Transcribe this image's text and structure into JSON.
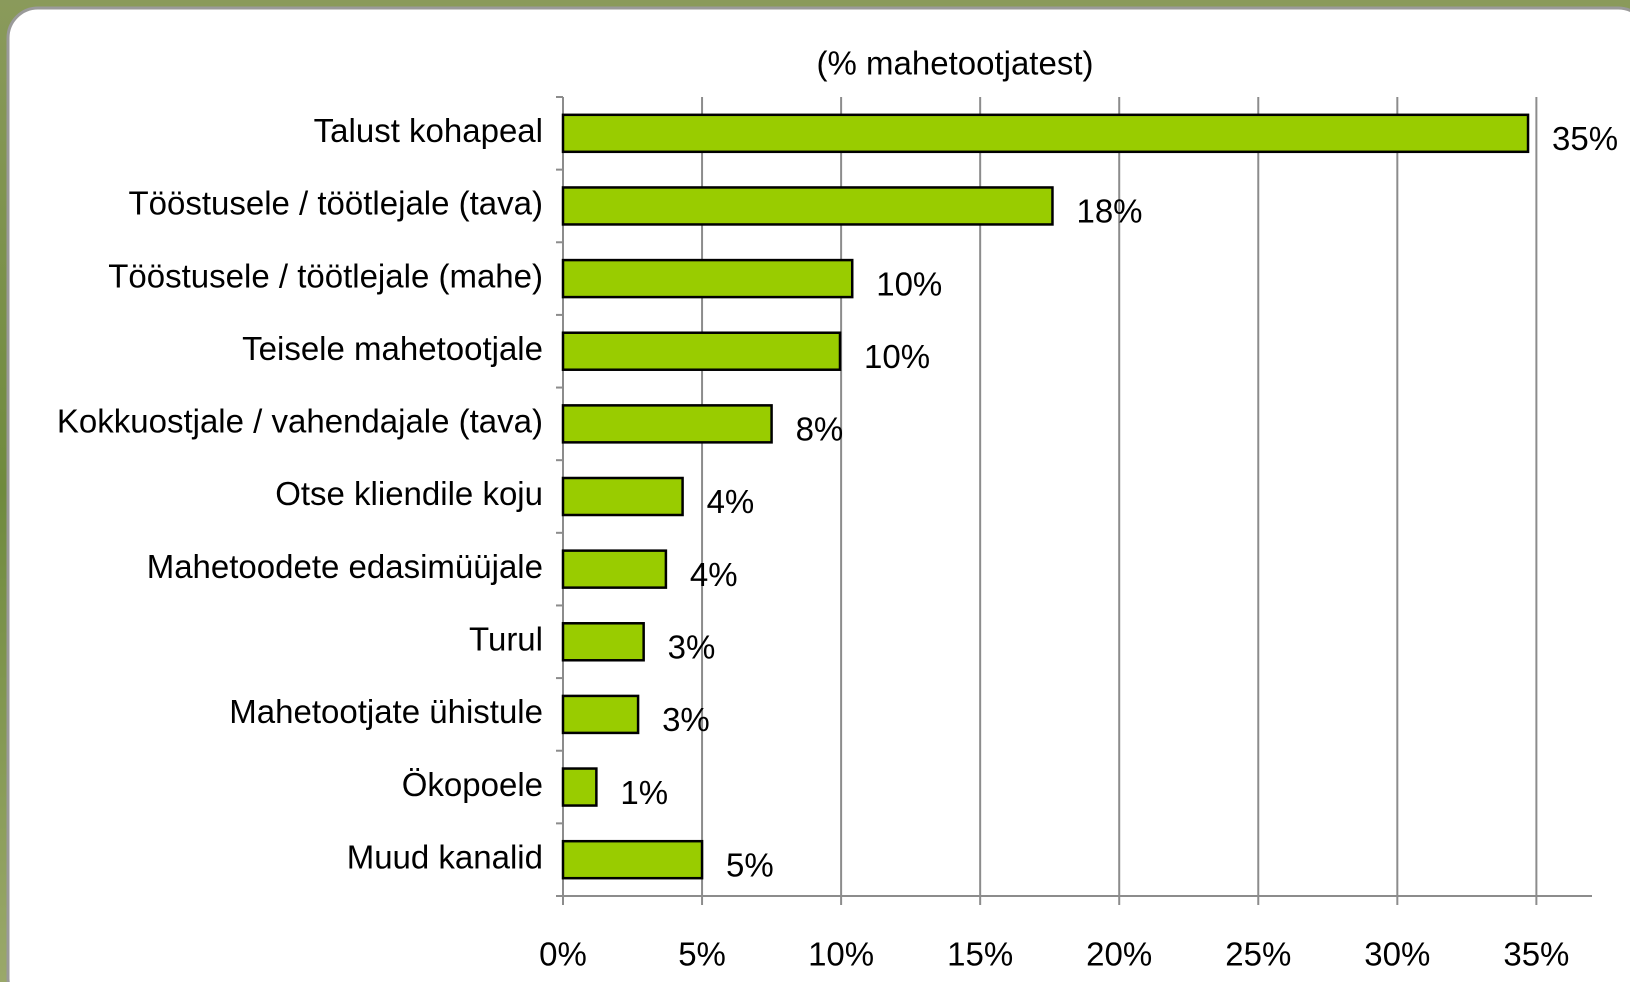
{
  "chart_data": {
    "type": "bar",
    "orientation": "horizontal",
    "title": "(% mahetootjatest)",
    "categories": [
      "Talust kohapeal",
      "Tööstusele / töötlejale (tava)",
      "Tööstusele / töötlejale (mahe)",
      "Teisele mahetootjale",
      "Kokkuostjale / vahendajale (tava)",
      "Otse kliendile koju",
      "Mahetoodete edasimüüjale",
      "Turul",
      "Mahetootjate ühistule",
      "Ökopoele",
      "Muud kanalid"
    ],
    "values": [
      34.7,
      17.6,
      10.4,
      9.96,
      7.5,
      4.3,
      3.7,
      2.9,
      2.7,
      1.2,
      5.0
    ],
    "value_labels": [
      "35%",
      "18%",
      "10%",
      "10%",
      "8%",
      "4%",
      "4%",
      "3%",
      "3%",
      "1%",
      "5%"
    ],
    "color": "#99cc00",
    "xlim": [
      0,
      37
    ],
    "xticks": [
      {
        "value": 0,
        "label": "0%"
      },
      {
        "value": 5,
        "label": "5%"
      },
      {
        "value": 10,
        "label": "10%"
      },
      {
        "value": 15,
        "label": "15%"
      },
      {
        "value": 20,
        "label": "20%"
      },
      {
        "value": 25,
        "label": "25%"
      },
      {
        "value": 30,
        "label": "30%"
      },
      {
        "value": 35,
        "label": "35%"
      }
    ],
    "grid": true
  }
}
